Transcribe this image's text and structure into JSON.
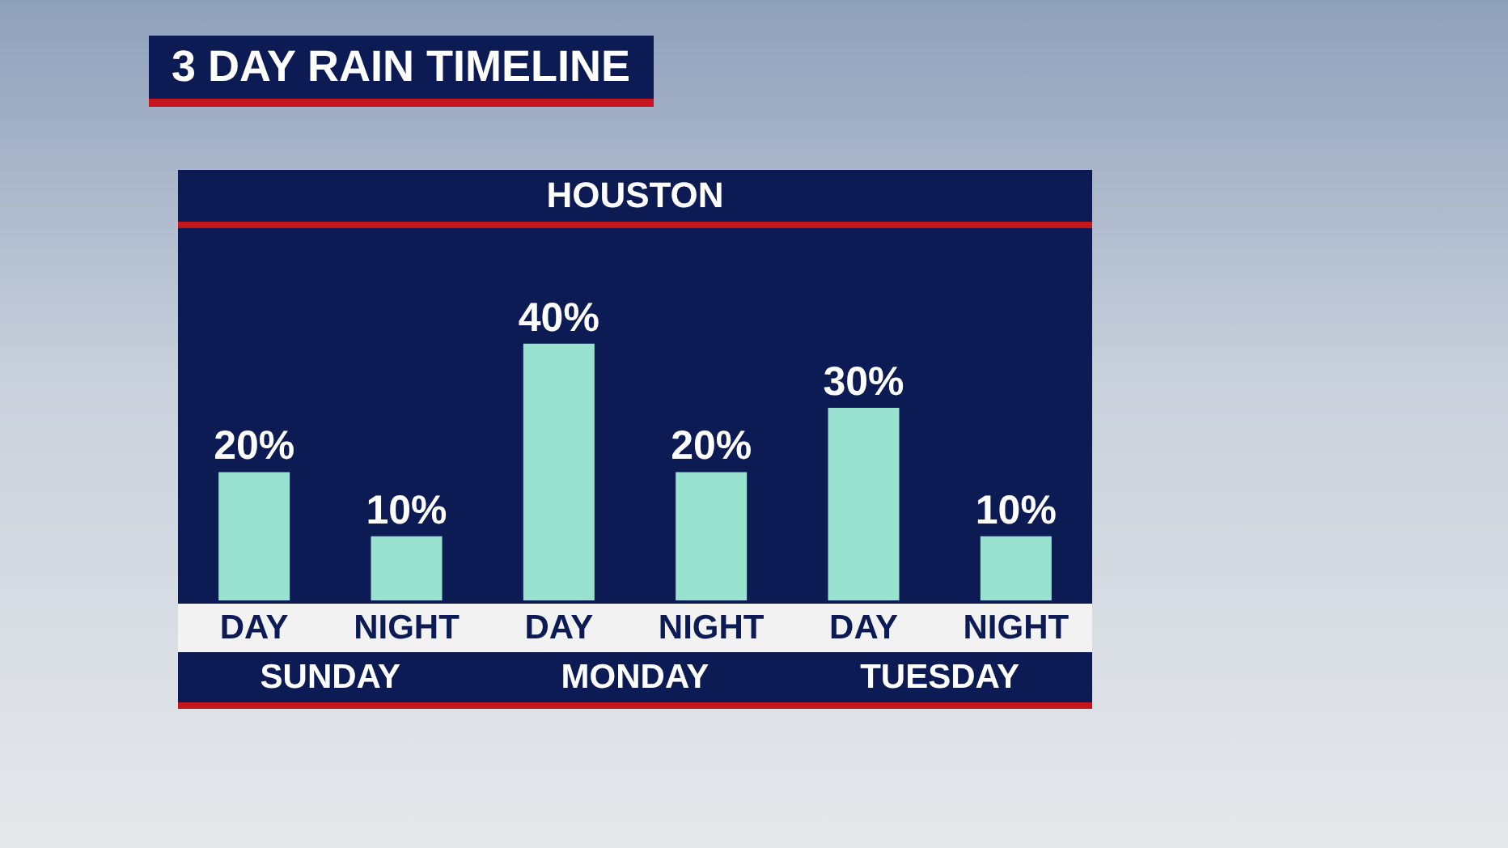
{
  "chart_data": {
    "type": "bar",
    "title": "3 DAY RAIN TIMELINE",
    "subtitle": "HOUSTON",
    "categories": [
      "DAY",
      "NIGHT",
      "DAY",
      "NIGHT",
      "DAY",
      "NIGHT"
    ],
    "values": [
      20,
      10,
      40,
      20,
      30,
      10
    ],
    "value_labels": [
      "20%",
      "10%",
      "40%",
      "20%",
      "30%",
      "10%"
    ],
    "color": "#99e2cf",
    "annotations": [
      "SUNDAY",
      "MONDAY",
      "TUESDAY"
    ]
  }
}
